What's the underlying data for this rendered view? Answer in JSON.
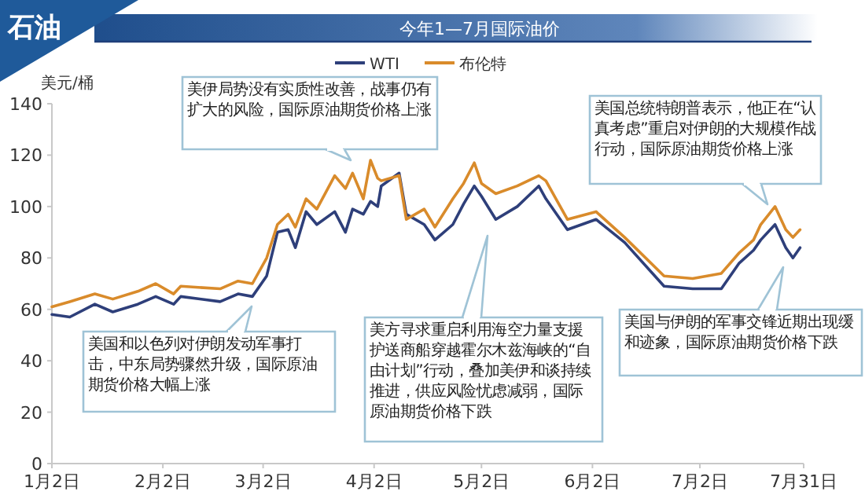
{
  "chart_data": {
    "type": "line",
    "title": "今年1—7月国际油价",
    "ylabel": "美元/桶",
    "legend": "top",
    "x": [
      "--01-02",
      "--01-07",
      "--01-14",
      "--01-19",
      "--01-26",
      "--01-31",
      "--02-05",
      "--02-07",
      "--02-18",
      "--02-23",
      "--02-27",
      "--03-03",
      "--03-06",
      "--03-09",
      "--03-11",
      "--03-14",
      "--03-17",
      "--03-22",
      "--03-25",
      "--03-27",
      "--03-30",
      "--04-01",
      "--04-03",
      "--04-04",
      "--04-09",
      "--04-11",
      "--04-16",
      "--04-19",
      "--04-24",
      "--04-27",
      "--04-30",
      "--05-02",
      "--05-06",
      "--05-12",
      "--05-18",
      "--05-20",
      "--05-26",
      "--06-03",
      "--06-11",
      "--06-22",
      "--06-30",
      "--07-08",
      "--07-13",
      "--07-17",
      "--07-19",
      "--07-23",
      "--07-26",
      "--07-28",
      "--07-30"
    ],
    "series": [
      {
        "name": "WTI",
        "color": "#2e3f7a",
        "values": [
          58,
          57,
          62,
          59,
          62,
          65,
          62,
          65,
          63,
          66,
          65,
          73,
          90,
          91,
          84,
          98,
          93,
          98,
          90,
          99,
          97,
          102,
          100,
          108,
          113,
          97,
          93,
          87,
          93,
          101,
          108,
          104,
          95,
          100,
          108,
          103,
          91,
          95,
          86,
          69,
          68,
          68,
          78,
          83,
          87,
          93,
          84,
          80,
          84
        ]
      },
      {
        "name": "布伦特",
        "color": "#d98b2b",
        "values": [
          61,
          63,
          66,
          64,
          67,
          70,
          66,
          69,
          68,
          71,
          70,
          80,
          93,
          97,
          92,
          103,
          99,
          112,
          107,
          113,
          103,
          118,
          111,
          110,
          112,
          95,
          99,
          92,
          103,
          109,
          117,
          109,
          105,
          108,
          112,
          110,
          95,
          98,
          88,
          73,
          72,
          74,
          82,
          87,
          93,
          100,
          91,
          88,
          91
        ]
      }
    ],
    "xlim": [
      "--01-02",
      "--07-31"
    ],
    "xticks": [
      {
        "value": "--01-02",
        "label": "1月2日"
      },
      {
        "value": "--02-02",
        "label": "2月2日"
      },
      {
        "value": "--03-02",
        "label": "3月2日"
      },
      {
        "value": "--04-02",
        "label": "4月2日"
      },
      {
        "value": "--05-02",
        "label": "5月2日"
      },
      {
        "value": "--06-02",
        "label": "6月2日"
      },
      {
        "value": "--07-02",
        "label": "7月2日"
      },
      {
        "value": "--07-31",
        "label": "7月31日"
      }
    ],
    "ylim": [
      0,
      140
    ],
    "yticks": [
      0,
      20,
      40,
      60,
      80,
      100,
      120,
      140
    ],
    "annotations": [
      "美伊局势没有实质性改善，战事仍有扩大的风险，国际原油期货价格上涨",
      "美国和以色列对伊朗发动军事打击，中东局势骤然升级，国际原油期货价格大幅上涨",
      "美方寻求重启利用海空力量支援护送商船穿越霍尔木兹海峡的“自由计划”行动，叠加美伊和谈持续推进，供应风险忧虑减弱，国际原油期货价格下跌",
      "美国总统特朗普表示，他正在“认真考虑”重启对伊朗的大规模作战行动，国际原油期货价格上涨",
      "美国与伊朗的军事交锋近期出现缓和迹象，国际原油期货价格下跌",
      "石油"
    ]
  }
}
